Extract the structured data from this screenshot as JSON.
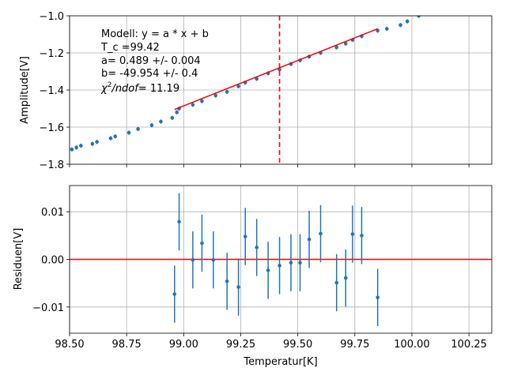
{
  "chart_data": [
    {
      "type": "scatter",
      "panel": "top",
      "title": "",
      "xlabel": "",
      "ylabel": "Amplitude[V]",
      "xlim": [
        98.5,
        100.35
      ],
      "ylim": [
        -1.8,
        -1.0
      ],
      "yticks": [
        -1.8,
        -1.6,
        -1.4,
        -1.2,
        -1.0
      ],
      "ytick_labels": [
        "−1.8",
        "−1.6",
        "−1.4",
        "−1.2",
        "−1.0"
      ],
      "xticks": [
        98.5,
        98.75,
        99.0,
        99.25,
        99.5,
        99.75,
        100.0,
        100.25
      ],
      "show_xtick_labels": false,
      "grid": true,
      "colors": {
        "data": "#1f77b4",
        "fit": "#ff0000",
        "vline": "#ff0000"
      },
      "series": [
        {
          "type": "scatter",
          "x": [
            98.51,
            98.53,
            98.55,
            98.6,
            98.62,
            98.68,
            98.7,
            98.76,
            98.8,
            98.86,
            98.9,
            98.95,
            98.97,
            98.98,
            99.04,
            99.08,
            99.14,
            99.19,
            99.24,
            99.27,
            99.32,
            99.37,
            99.42,
            99.47,
            99.51,
            99.55,
            99.6,
            99.67,
            99.71,
            99.74,
            99.78,
            99.85,
            99.89,
            99.95,
            99.98,
            100.03
          ],
          "y": [
            -1.72,
            -1.71,
            -1.7,
            -1.69,
            -1.68,
            -1.66,
            -1.65,
            -1.63,
            -1.61,
            -1.59,
            -1.57,
            -1.55,
            -1.52,
            -1.5,
            -1.48,
            -1.46,
            -1.43,
            -1.41,
            -1.38,
            -1.36,
            -1.34,
            -1.31,
            -1.29,
            -1.26,
            -1.24,
            -1.22,
            -1.2,
            -1.17,
            -1.15,
            -1.13,
            -1.11,
            -1.08,
            -1.07,
            -1.05,
            -1.03,
            -1.0
          ]
        }
      ],
      "fit_line": {
        "x": [
          98.96,
          99.85
        ],
        "y": [
          -1.505,
          -1.07
        ]
      },
      "vline": {
        "x": 99.42
      },
      "annotation": [
        "Modell: y = a * x + b",
        "T_c =99.42",
        "a= 0.489 +/- 0.004",
        "b= -49.954 +/- 0.4"
      ],
      "annotation_chi": {
        "symbol": "χ",
        "sup": "2",
        "rest": "/ndof",
        "value": "= 11.19"
      }
    },
    {
      "type": "scatter",
      "panel": "bottom",
      "title": "",
      "xlabel": "Temperatur[K]",
      "ylabel": "Residuen[V]",
      "xlim": [
        98.5,
        100.35
      ],
      "ylim": [
        -0.0155,
        0.0155
      ],
      "xticks": [
        98.5,
        98.75,
        99.0,
        99.25,
        99.5,
        99.75,
        100.0,
        100.25
      ],
      "xtick_labels": [
        "98.50",
        "98.75",
        "99.00",
        "99.25",
        "99.50",
        "99.75",
        "100.00",
        "100.25"
      ],
      "yticks": [
        -0.01,
        0.0,
        0.01
      ],
      "ytick_labels": [
        "−0.01",
        "0.00",
        "0.01"
      ],
      "grid": true,
      "colors": {
        "data": "#1f77b4",
        "zero_line": "#ff0000"
      },
      "zero_line": 0.0,
      "series": [
        {
          "type": "errorbar",
          "x": [
            98.96,
            98.98,
            99.04,
            99.08,
            99.13,
            99.19,
            99.24,
            99.27,
            99.32,
            99.37,
            99.42,
            99.47,
            99.51,
            99.55,
            99.6,
            99.67,
            99.71,
            99.74,
            99.78,
            99.85
          ],
          "y": [
            -0.0073,
            0.0079,
            -0.0001,
            0.0034,
            -0.0001,
            -0.0046,
            -0.0058,
            0.0048,
            0.0025,
            -0.0023,
            -0.0013,
            -0.0007,
            -0.0007,
            0.0042,
            0.0054,
            -0.0049,
            -0.0039,
            0.0053,
            0.005,
            -0.008
          ],
          "err": 0.006
        }
      ]
    }
  ]
}
